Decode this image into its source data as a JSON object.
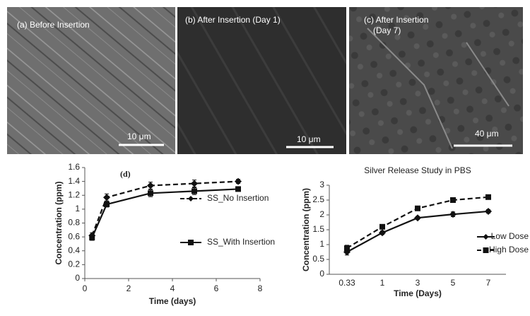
{
  "panels": [
    {
      "label": [
        "(a) Before Insertion"
      ],
      "scale": "10 μm"
    },
    {
      "label": [
        "(b) After Insertion (Day 1)"
      ],
      "scale": "10 μm"
    },
    {
      "label": [
        "(c) After Insertion",
        "(Day 7)"
      ],
      "scale": "40 μm"
    }
  ],
  "chart_data": [
    {
      "type": "line",
      "annotation": "(d)",
      "x_label": "Time (days)",
      "y_label": "Concentration (ppm)",
      "x": [
        0.33,
        1,
        3,
        5,
        7
      ],
      "series": [
        {
          "name": "SS_No Insertion",
          "color": "#111111",
          "dash": true,
          "marker": "diamond",
          "values": [
            0.62,
            1.17,
            1.34,
            1.37,
            1.4
          ],
          "errors": [
            0.04,
            0.05,
            0.05,
            0.05,
            0.03
          ]
        },
        {
          "name": "SS_With Insertion",
          "color": "#111111",
          "dash": false,
          "marker": "square",
          "values": [
            0.59,
            1.07,
            1.23,
            1.26,
            1.29
          ],
          "errors": [
            0.04,
            0.04,
            0.05,
            0.05,
            0.03
          ]
        }
      ],
      "xlim": [
        0,
        8
      ],
      "xticks": [
        0,
        2,
        4,
        6,
        8
      ],
      "ylim": [
        0,
        1.6
      ],
      "yticks": [
        0,
        0.2,
        0.4,
        0.6,
        0.8,
        1,
        1.2,
        1.4,
        1.6
      ]
    },
    {
      "type": "line",
      "title": "Silver Release Study in PBS",
      "x_label": "Time (Days)",
      "y_label": "Concentration (ppm)",
      "categories": [
        "0.33",
        "1",
        "3",
        "5",
        "7"
      ],
      "series": [
        {
          "name": "Low Dose",
          "color": "#111111",
          "dash": false,
          "marker": "diamond",
          "values": [
            0.75,
            1.4,
            1.9,
            2.02,
            2.12
          ],
          "errors": [
            0.1,
            0.06,
            0.05,
            0.08,
            0.06
          ]
        },
        {
          "name": "High Dose",
          "color": "#111111",
          "dash": true,
          "marker": "square",
          "values": [
            0.88,
            1.6,
            2.22,
            2.5,
            2.6
          ],
          "errors": [
            0.1,
            0.05,
            0.05,
            0.05,
            0.04
          ]
        }
      ],
      "ylim": [
        0,
        3
      ],
      "yticks": [
        0,
        0.5,
        1,
        1.5,
        2,
        2.5,
        3
      ]
    }
  ]
}
